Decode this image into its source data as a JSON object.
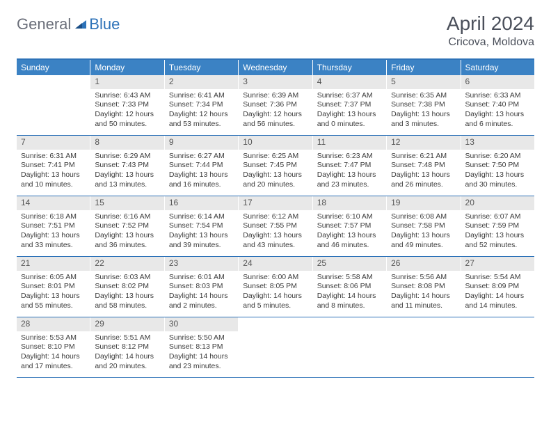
{
  "brand": {
    "part1": "General",
    "part2": "Blue"
  },
  "title": "April 2024",
  "location": "Cricova, Moldova",
  "colors": {
    "header_bar": "#3b82c4",
    "rule": "#2d72b8",
    "daynum_bg": "#e8e8e8",
    "text": "#3a3a3a",
    "title_text": "#4a4f5a"
  },
  "typography": {
    "title_fontsize": 28,
    "location_fontsize": 16,
    "dow_fontsize": 12,
    "body_fontsize": 10.5
  },
  "daysOfWeek": [
    "Sunday",
    "Monday",
    "Tuesday",
    "Wednesday",
    "Thursday",
    "Friday",
    "Saturday"
  ],
  "weeks": [
    [
      {
        "n": "",
        "sr": "",
        "ss": "",
        "dl": ""
      },
      {
        "n": "1",
        "sr": "Sunrise: 6:43 AM",
        "ss": "Sunset: 7:33 PM",
        "dl": "Daylight: 12 hours and 50 minutes."
      },
      {
        "n": "2",
        "sr": "Sunrise: 6:41 AM",
        "ss": "Sunset: 7:34 PM",
        "dl": "Daylight: 12 hours and 53 minutes."
      },
      {
        "n": "3",
        "sr": "Sunrise: 6:39 AM",
        "ss": "Sunset: 7:36 PM",
        "dl": "Daylight: 12 hours and 56 minutes."
      },
      {
        "n": "4",
        "sr": "Sunrise: 6:37 AM",
        "ss": "Sunset: 7:37 PM",
        "dl": "Daylight: 13 hours and 0 minutes."
      },
      {
        "n": "5",
        "sr": "Sunrise: 6:35 AM",
        "ss": "Sunset: 7:38 PM",
        "dl": "Daylight: 13 hours and 3 minutes."
      },
      {
        "n": "6",
        "sr": "Sunrise: 6:33 AM",
        "ss": "Sunset: 7:40 PM",
        "dl": "Daylight: 13 hours and 6 minutes."
      }
    ],
    [
      {
        "n": "7",
        "sr": "Sunrise: 6:31 AM",
        "ss": "Sunset: 7:41 PM",
        "dl": "Daylight: 13 hours and 10 minutes."
      },
      {
        "n": "8",
        "sr": "Sunrise: 6:29 AM",
        "ss": "Sunset: 7:43 PM",
        "dl": "Daylight: 13 hours and 13 minutes."
      },
      {
        "n": "9",
        "sr": "Sunrise: 6:27 AM",
        "ss": "Sunset: 7:44 PM",
        "dl": "Daylight: 13 hours and 16 minutes."
      },
      {
        "n": "10",
        "sr": "Sunrise: 6:25 AM",
        "ss": "Sunset: 7:45 PM",
        "dl": "Daylight: 13 hours and 20 minutes."
      },
      {
        "n": "11",
        "sr": "Sunrise: 6:23 AM",
        "ss": "Sunset: 7:47 PM",
        "dl": "Daylight: 13 hours and 23 minutes."
      },
      {
        "n": "12",
        "sr": "Sunrise: 6:21 AM",
        "ss": "Sunset: 7:48 PM",
        "dl": "Daylight: 13 hours and 26 minutes."
      },
      {
        "n": "13",
        "sr": "Sunrise: 6:20 AM",
        "ss": "Sunset: 7:50 PM",
        "dl": "Daylight: 13 hours and 30 minutes."
      }
    ],
    [
      {
        "n": "14",
        "sr": "Sunrise: 6:18 AM",
        "ss": "Sunset: 7:51 PM",
        "dl": "Daylight: 13 hours and 33 minutes."
      },
      {
        "n": "15",
        "sr": "Sunrise: 6:16 AM",
        "ss": "Sunset: 7:52 PM",
        "dl": "Daylight: 13 hours and 36 minutes."
      },
      {
        "n": "16",
        "sr": "Sunrise: 6:14 AM",
        "ss": "Sunset: 7:54 PM",
        "dl": "Daylight: 13 hours and 39 minutes."
      },
      {
        "n": "17",
        "sr": "Sunrise: 6:12 AM",
        "ss": "Sunset: 7:55 PM",
        "dl": "Daylight: 13 hours and 43 minutes."
      },
      {
        "n": "18",
        "sr": "Sunrise: 6:10 AM",
        "ss": "Sunset: 7:57 PM",
        "dl": "Daylight: 13 hours and 46 minutes."
      },
      {
        "n": "19",
        "sr": "Sunrise: 6:08 AM",
        "ss": "Sunset: 7:58 PM",
        "dl": "Daylight: 13 hours and 49 minutes."
      },
      {
        "n": "20",
        "sr": "Sunrise: 6:07 AM",
        "ss": "Sunset: 7:59 PM",
        "dl": "Daylight: 13 hours and 52 minutes."
      }
    ],
    [
      {
        "n": "21",
        "sr": "Sunrise: 6:05 AM",
        "ss": "Sunset: 8:01 PM",
        "dl": "Daylight: 13 hours and 55 minutes."
      },
      {
        "n": "22",
        "sr": "Sunrise: 6:03 AM",
        "ss": "Sunset: 8:02 PM",
        "dl": "Daylight: 13 hours and 58 minutes."
      },
      {
        "n": "23",
        "sr": "Sunrise: 6:01 AM",
        "ss": "Sunset: 8:03 PM",
        "dl": "Daylight: 14 hours and 2 minutes."
      },
      {
        "n": "24",
        "sr": "Sunrise: 6:00 AM",
        "ss": "Sunset: 8:05 PM",
        "dl": "Daylight: 14 hours and 5 minutes."
      },
      {
        "n": "25",
        "sr": "Sunrise: 5:58 AM",
        "ss": "Sunset: 8:06 PM",
        "dl": "Daylight: 14 hours and 8 minutes."
      },
      {
        "n": "26",
        "sr": "Sunrise: 5:56 AM",
        "ss": "Sunset: 8:08 PM",
        "dl": "Daylight: 14 hours and 11 minutes."
      },
      {
        "n": "27",
        "sr": "Sunrise: 5:54 AM",
        "ss": "Sunset: 8:09 PM",
        "dl": "Daylight: 14 hours and 14 minutes."
      }
    ],
    [
      {
        "n": "28",
        "sr": "Sunrise: 5:53 AM",
        "ss": "Sunset: 8:10 PM",
        "dl": "Daylight: 14 hours and 17 minutes."
      },
      {
        "n": "29",
        "sr": "Sunrise: 5:51 AM",
        "ss": "Sunset: 8:12 PM",
        "dl": "Daylight: 14 hours and 20 minutes."
      },
      {
        "n": "30",
        "sr": "Sunrise: 5:50 AM",
        "ss": "Sunset: 8:13 PM",
        "dl": "Daylight: 14 hours and 23 minutes."
      },
      {
        "n": "",
        "sr": "",
        "ss": "",
        "dl": ""
      },
      {
        "n": "",
        "sr": "",
        "ss": "",
        "dl": ""
      },
      {
        "n": "",
        "sr": "",
        "ss": "",
        "dl": ""
      },
      {
        "n": "",
        "sr": "",
        "ss": "",
        "dl": ""
      }
    ]
  ]
}
